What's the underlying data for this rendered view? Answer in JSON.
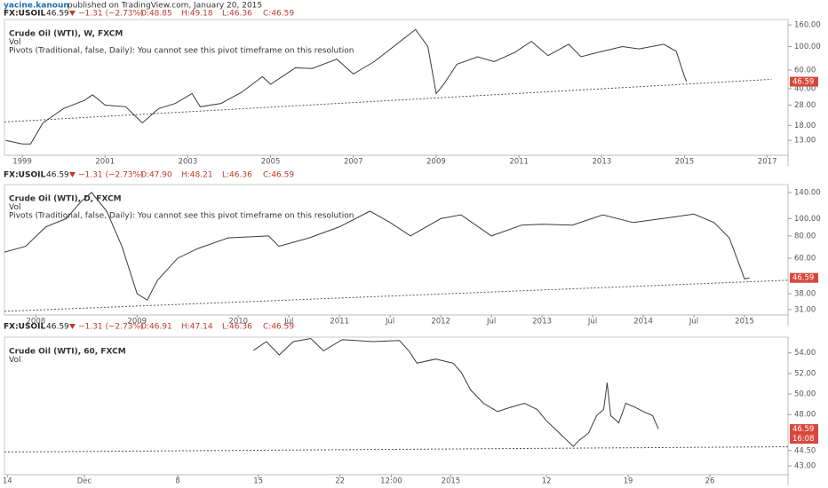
{
  "header": {
    "author": "yacine.kanoun",
    "published": "published on TradingView.com, January 20, 2015"
  },
  "chart_data": [
    {
      "type": "line",
      "quote": {
        "symbol": "FX:USOIL",
        "last": "46.59",
        "change": "−1.31 (−2.73%)",
        "open": "O:48.85",
        "high": "H:49.18",
        "low": "L:46.36",
        "close": "C:46.59"
      },
      "legend": [
        "Crude Oil (WTI), W, FXCM",
        "Vol",
        "Pivots (Traditional, false, Daily): You cannot see this pivot timeframe on this resolution"
      ],
      "x": [
        1998.6,
        1999.0,
        1999.2,
        1999.5,
        2000.0,
        2000.5,
        2000.7,
        2001.0,
        2001.5,
        2001.9,
        2002.3,
        2002.7,
        2003.1,
        2003.3,
        2003.8,
        2004.3,
        2004.8,
        2005.0,
        2005.6,
        2006.0,
        2006.6,
        2007.0,
        2007.5,
        2007.9,
        2008.5,
        2008.8,
        2009.0,
        2009.2,
        2009.5,
        2010.0,
        2010.4,
        2010.9,
        2011.3,
        2011.7,
        2012.2,
        2012.5,
        2012.9,
        2013.5,
        2013.9,
        2014.5,
        2014.8,
        2015.0,
        2015.05
      ],
      "series": [
        {
          "color": "#3a3a3a",
          "values": [
            13,
            12,
            12,
            19,
            26,
            31,
            35,
            28,
            27,
            19,
            26,
            29,
            36,
            27,
            29,
            37,
            52,
            44,
            63,
            62,
            76,
            55,
            72,
            95,
            145,
            100,
            36,
            45,
            68,
            80,
            72,
            88,
            112,
            82,
            105,
            80,
            88,
            100,
            95,
            105,
            90,
            52,
            46.59
          ]
        }
      ],
      "xlim": [
        1998.57,
        2017.5
      ],
      "ylim": [
        9.4,
        180
      ],
      "log_scale": true,
      "xticks": [
        1999,
        2001,
        2003,
        2005,
        2007,
        2009,
        2011,
        2013,
        2015,
        2017
      ],
      "yticks": [
        {
          "value": 160,
          "label": "160.00"
        },
        {
          "value": 100,
          "label": "100.00"
        },
        {
          "value": 60,
          "label": "60.00"
        },
        {
          "value": 40,
          "label": "40.00"
        },
        {
          "value": 28,
          "label": "28.00"
        },
        {
          "value": 18,
          "label": "18.00"
        },
        {
          "value": 13,
          "label": "13.00"
        }
      ],
      "trendline": {
        "x": [
          1998.57,
          2017.1
        ],
        "y": [
          19.4,
          49
        ]
      },
      "last_price": 46.59
    },
    {
      "type": "line",
      "quote": {
        "symbol": "FX:USOIL",
        "last": "46.59",
        "change": "−1.31 (−2.73%)",
        "open": "O:47.90",
        "high": "H:48.21",
        "low": "L:46.36",
        "close": "C:46.59"
      },
      "legend": [
        "Crude Oil (WTI), D, FXCM",
        "Vol",
        "Pivots (Traditional, false, Daily): You cannot see this pivot timeframe on this resolution"
      ],
      "x": [
        2007.69,
        2007.9,
        2008.1,
        2008.3,
        2008.45,
        2008.55,
        2008.7,
        2008.85,
        2009.0,
        2009.1,
        2009.2,
        2009.4,
        2009.6,
        2009.9,
        2010.3,
        2010.4,
        2010.7,
        2011.0,
        2011.3,
        2011.5,
        2011.7,
        2012.0,
        2012.2,
        2012.5,
        2012.8,
        2013.0,
        2013.3,
        2013.6,
        2013.9,
        2014.3,
        2014.5,
        2014.7,
        2014.85,
        2014.95,
        2015.0,
        2015.05
      ],
      "series": [
        {
          "color": "#3a3a3a",
          "values": [
            65,
            70,
            90,
            100,
            125,
            140,
            110,
            70,
            38,
            35,
            45,
            60,
            68,
            78,
            80,
            70,
            78,
            90,
            110,
            95,
            80,
            100,
            105,
            80,
            92,
            93,
            92,
            105,
            95,
            102,
            106,
            95,
            78,
            55,
            46,
            46.59
          ]
        }
      ],
      "xlim": [
        2007.69,
        2015.43
      ],
      "ylim": [
        28.9,
        155
      ],
      "log_scale": true,
      "xticks": [
        2008,
        2009,
        2010,
        {
          "value": 2010.5,
          "label": "Jul"
        },
        2011,
        {
          "value": 2011.5,
          "label": "Jul"
        },
        2012,
        {
          "value": 2012.5,
          "label": "Jul"
        },
        2013,
        {
          "value": 2013.5,
          "label": "Jul"
        },
        2014,
        {
          "value": 2014.5,
          "label": "Jul"
        },
        2015
      ],
      "yticks": [
        {
          "value": 140,
          "label": "140.00"
        },
        {
          "value": 100,
          "label": "100.00"
        },
        {
          "value": 80,
          "label": "80.00"
        },
        {
          "value": 60,
          "label": "60.00"
        },
        {
          "value": 38,
          "label": "38.00"
        },
        {
          "value": 31,
          "label": "31.00"
        }
      ],
      "trendline": {
        "x": [
          2007.69,
          2015.43
        ],
        "y": [
          30.3,
          45.2
        ]
      },
      "last_price": 46.59
    },
    {
      "type": "line",
      "quote": {
        "symbol": "FX:USOIL",
        "last": "46.59",
        "change": "−1.31 (−2.73%)",
        "open": "O:46.91",
        "high": "H:47.14",
        "low": "L:46.36",
        "close": "C:46.59"
      },
      "legend": [
        "Crude Oil (WTI), 60, FXCM",
        "Vol"
      ],
      "x": [
        14.5,
        15.6,
        16.7,
        17.9,
        19.4,
        20.5,
        22.1,
        24.7,
        27.0,
        27.8,
        28.5,
        30.1,
        31.6,
        32.3,
        33.1,
        34.2,
        35.4,
        36.5,
        37.7,
        38.8,
        39.6,
        40.7,
        41.9,
        42.4,
        43.2,
        43.9,
        44.5,
        44.8,
        45.1,
        45.8,
        46.4,
        47.2,
        47.9,
        48.7,
        49.2
      ],
      "series": [
        {
          "color": "#3a3a3a",
          "values": [
            54.25,
            55.1,
            53.8,
            55.1,
            55.4,
            54.2,
            55.3,
            55.1,
            55.2,
            54.2,
            53.0,
            53.4,
            53.0,
            52.1,
            50.4,
            49.1,
            48.3,
            48.7,
            49.1,
            48.5,
            47.4,
            46.2,
            44.9,
            45.5,
            46.2,
            47.9,
            48.5,
            51.1,
            47.9,
            47.2,
            49.1,
            48.7,
            48.3,
            47.9,
            46.59
          ]
        }
      ],
      "xlim": [
        -6.85,
        60.3
      ],
      "ylim": [
        42.15,
        55.53
      ],
      "log_scale": false,
      "xticks": [
        {
          "value": -6.6,
          "label": "14"
        },
        {
          "value": 0,
          "label": "Dec"
        },
        {
          "value": 8.0,
          "label": "8"
        },
        {
          "value": 14.9,
          "label": "15"
        },
        {
          "value": 21.9,
          "label": "22"
        },
        {
          "value": 26.3,
          "label": "12:00"
        },
        {
          "value": 31.4,
          "label": "2015"
        },
        {
          "value": 39.6,
          "label": "12"
        },
        {
          "value": 46.6,
          "label": "19"
        },
        {
          "value": 53.6,
          "label": "26"
        }
      ],
      "yticks": [
        {
          "value": 54,
          "label": "54.00"
        },
        {
          "value": 52,
          "label": "52.00"
        },
        {
          "value": 50,
          "label": "50.00"
        },
        {
          "value": 48,
          "label": "48.00"
        },
        {
          "value": 44.5,
          "label": "44.50"
        },
        {
          "value": 43,
          "label": "43.00"
        }
      ],
      "trendline": {
        "x": [
          -6.85,
          60.3
        ],
        "y": [
          44.36,
          44.87
        ]
      },
      "last_price": 46.59,
      "countdown": "16:08"
    }
  ]
}
